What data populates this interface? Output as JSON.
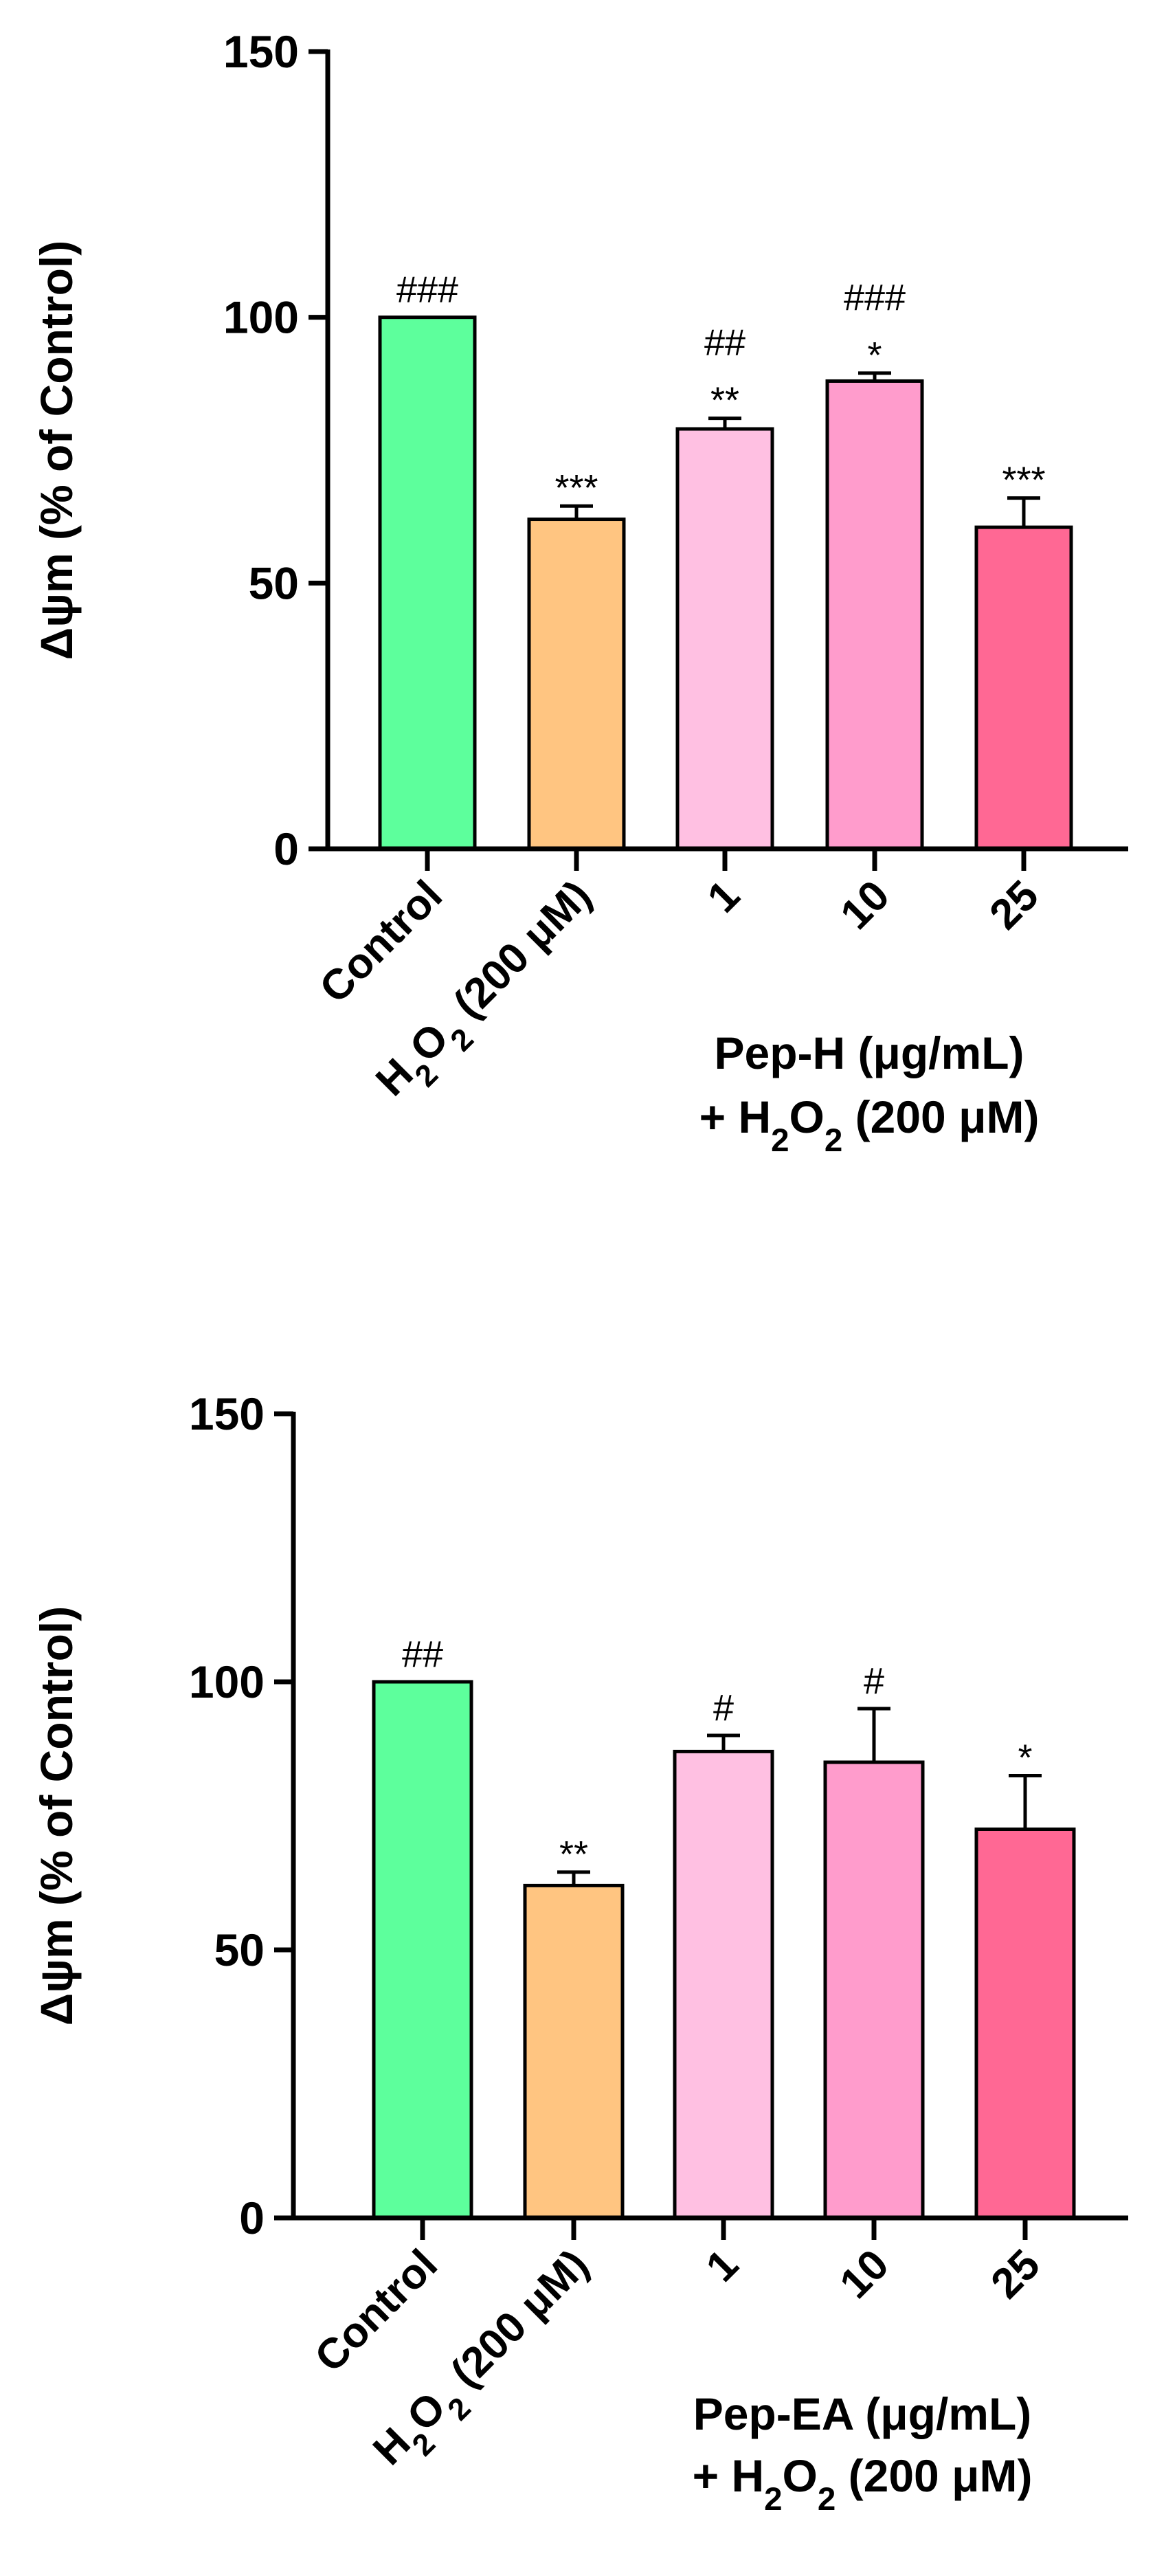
{
  "chart_data": [
    {
      "type": "bar",
      "ylabel": "Δψm (% of Control)",
      "ylim": [
        0,
        150
      ],
      "yticks": [
        0,
        50,
        100,
        150
      ],
      "categories": [
        "Control",
        "H2O2 (200 μM)",
        "1",
        "10",
        "25"
      ],
      "category_labels": [
        {
          "text": "Control",
          "sub": []
        },
        {
          "text": "H2O2 (200 μM)",
          "parts": [
            {
              "t": "H"
            },
            {
              "t": "2",
              "sub": true
            },
            {
              "t": "O"
            },
            {
              "t": "2",
              "sub": true
            },
            {
              "t": " (200 μM)"
            }
          ]
        },
        {
          "text": "1"
        },
        {
          "text": "10"
        },
        {
          "text": "25"
        }
      ],
      "values": [
        100,
        62,
        79,
        88,
        60.5
      ],
      "errors": [
        0,
        2.5,
        2,
        1.5,
        5.5
      ],
      "colors": [
        "#5dff9c",
        "#ffc581",
        "#ffc0e2",
        "#ff9ccc",
        "#ff6894"
      ],
      "significance_star": [
        "",
        "***",
        "**",
        "*",
        "***"
      ],
      "significance_hash": [
        "###",
        "",
        "##",
        "###",
        ""
      ],
      "group_label_line1": "Pep-H (μg/mL)",
      "group_label_line2": {
        "text": "+ H2O2 (200 μM)",
        "parts": [
          {
            "t": "+ H"
          },
          {
            "t": "2",
            "sub": true
          },
          {
            "t": "O"
          },
          {
            "t": "2",
            "sub": true
          },
          {
            "t": " (200 μM)"
          }
        ]
      }
    },
    {
      "type": "bar",
      "ylabel": "Δψm (% of Control)",
      "ylim": [
        0,
        150
      ],
      "yticks": [
        0,
        50,
        100,
        150
      ],
      "categories": [
        "Control",
        "H2O2 (200 μM)",
        "1",
        "10",
        "25"
      ],
      "category_labels": [
        {
          "text": "Control"
        },
        {
          "text": "H2O2 (200 μM)",
          "parts": [
            {
              "t": "H"
            },
            {
              "t": "2",
              "sub": true
            },
            {
              "t": "O"
            },
            {
              "t": "2",
              "sub": true
            },
            {
              "t": " (200 μM)"
            }
          ]
        },
        {
          "text": "1"
        },
        {
          "text": "10"
        },
        {
          "text": "25"
        }
      ],
      "values": [
        100,
        62,
        87,
        85,
        72.5
      ],
      "errors": [
        0,
        2.5,
        3,
        10,
        10
      ],
      "colors": [
        "#5dff9c",
        "#ffc581",
        "#ffc0e2",
        "#ff9ccc",
        "#ff6894"
      ],
      "significance_star": [
        "",
        "**",
        "",
        "",
        "*"
      ],
      "significance_hash": [
        "##",
        "",
        "#",
        "#",
        ""
      ],
      "group_label_line1": "Pep-EA (μg/mL)",
      "group_label_line2": {
        "text": "+ H2O2 (200 μM)",
        "parts": [
          {
            "t": "+ H"
          },
          {
            "t": "2",
            "sub": true
          },
          {
            "t": "O"
          },
          {
            "t": "2",
            "sub": true
          },
          {
            "t": " (200 μM)"
          }
        ]
      }
    }
  ]
}
